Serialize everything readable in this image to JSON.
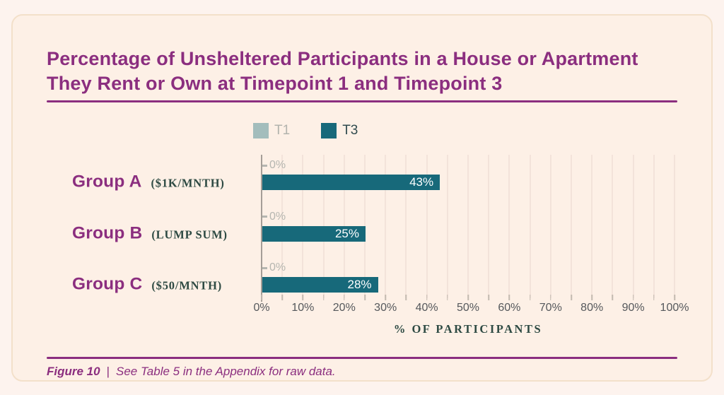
{
  "header": {
    "title_line1": "Percentage of Unsheltered Participants in a House or Apartment",
    "title_line2": "They Rent or Own at Timepoint 1 and Timepoint 3"
  },
  "chart_data": {
    "type": "bar",
    "orientation": "horizontal",
    "title": "Percentage of Unsheltered Participants in a House or Apartment They Rent or Own at Timepoint 1 and Timepoint 3",
    "categories": [
      "Group A",
      "Group B",
      "Group C"
    ],
    "category_sublabels": [
      "($1K/MNTH)",
      "(LUMP SUM)",
      "($50/MNTH)"
    ],
    "series": [
      {
        "name": "T1",
        "values": [
          0,
          0,
          0
        ],
        "value_labels": [
          "0%",
          "0%",
          "0%"
        ],
        "color": "#a3bdbc",
        "label_color": "#b2b3ad"
      },
      {
        "name": "T3",
        "values": [
          43,
          25,
          28
        ],
        "value_labels": [
          "43%",
          "25%",
          "28%"
        ],
        "color": "#17697a",
        "label_color": "#2f4a4e"
      }
    ],
    "xlabel": "% OF PARTICIPANTS",
    "xlim": [
      0,
      100
    ],
    "xtick_labels": [
      "0%",
      "10%",
      "20%",
      "30%",
      "40%",
      "50%",
      "60%",
      "70%",
      "80%",
      "90%",
      "100%"
    ],
    "minor_tick_step": 5,
    "gridline_step": 5,
    "grid": true,
    "legend_position": "top"
  },
  "footer": {
    "figure_label": "Figure 10",
    "separator": "|",
    "caption": "See Table 5 in the Appendix for raw data."
  },
  "colors": {
    "accent_purple": "#8b2e7f",
    "bar_teal": "#17697a",
    "t1_swatch": "#a3bdbc",
    "muted_gray": "#b5b6b0",
    "axis_text": "#55585c",
    "serif_dark": "#2e4a43",
    "page_bg": "#fdf3ee",
    "card_bg": "#fdf0e6",
    "card_border": "#f3e0ca"
  }
}
